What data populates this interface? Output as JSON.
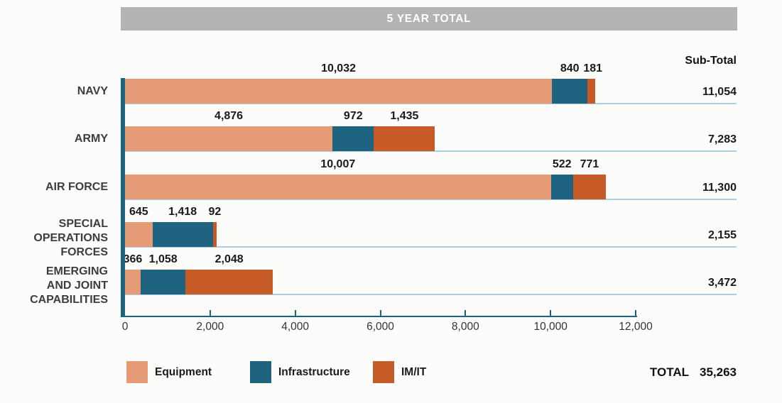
{
  "header": {
    "title": "5 YEAR TOTAL"
  },
  "columns": {
    "subtotal_header": "Sub-Total"
  },
  "footer": {
    "total_label": "TOTAL",
    "total_value": "35,263"
  },
  "legend": {
    "items": [
      {
        "label": "Equipment",
        "color": "#e49b76"
      },
      {
        "label": "Infrastructure",
        "color": "#1e6480"
      },
      {
        "label": "IM/IT",
        "color": "#c75b28"
      }
    ]
  },
  "colors": {
    "background": "#fcfcfb",
    "header_bar": "#b3b3b3",
    "equipment": "#e49b76",
    "infrastructure": "#1e6480",
    "imit": "#c75b28",
    "axis": "#1e6480",
    "row_line": "#aacfe0",
    "category_text": "#3d3d3d",
    "value_text": "#1a1a1a"
  },
  "chart_data": {
    "type": "bar",
    "orientation": "horizontal",
    "stacked": true,
    "title": "5 YEAR TOTAL",
    "categories": [
      "NAVY",
      "ARMY",
      "AIR FORCE",
      "SPECIAL OPERATIONS FORCES",
      "EMERGING AND JOINT CAPABILITIES"
    ],
    "category_display_lines": [
      [
        "NAVY"
      ],
      [
        "ARMY"
      ],
      [
        "AIR FORCE"
      ],
      [
        "SPECIAL",
        "OPERATIONS",
        "FORCES"
      ],
      [
        "EMERGING",
        "AND JOINT",
        "CAPABILITIES"
      ]
    ],
    "series": [
      {
        "name": "Equipment",
        "color": "#e49b76",
        "values": [
          10032,
          4876,
          10007,
          645,
          366
        ],
        "value_labels": [
          "10,032",
          "4,876",
          "10,007",
          "645",
          "366"
        ]
      },
      {
        "name": "Infrastructure",
        "color": "#1e6480",
        "values": [
          840,
          972,
          522,
          1418,
          1058
        ],
        "value_labels": [
          "840",
          "972",
          "522",
          "1,418",
          "1,058"
        ]
      },
      {
        "name": "IM/IT",
        "color": "#c75b28",
        "values": [
          181,
          1435,
          771,
          92,
          2048
        ],
        "value_labels": [
          "181",
          "1,435",
          "771",
          "92",
          "2,048"
        ]
      }
    ],
    "subtotals": [
      11054,
      7283,
      11300,
      2155,
      3472
    ],
    "subtotal_labels": [
      "11,054",
      "7,283",
      "11,300",
      "2,155",
      "3,472"
    ],
    "total": 35263,
    "xlim": [
      0,
      12000
    ],
    "x_tick_values": [
      0,
      2000,
      4000,
      6000,
      8000,
      10000,
      12000
    ],
    "x_tick_labels": [
      "0",
      "2,000",
      "4,000",
      "6,000",
      "8,000",
      "10,000",
      "12,000"
    ],
    "legend_position": "bottom",
    "grid": false
  }
}
